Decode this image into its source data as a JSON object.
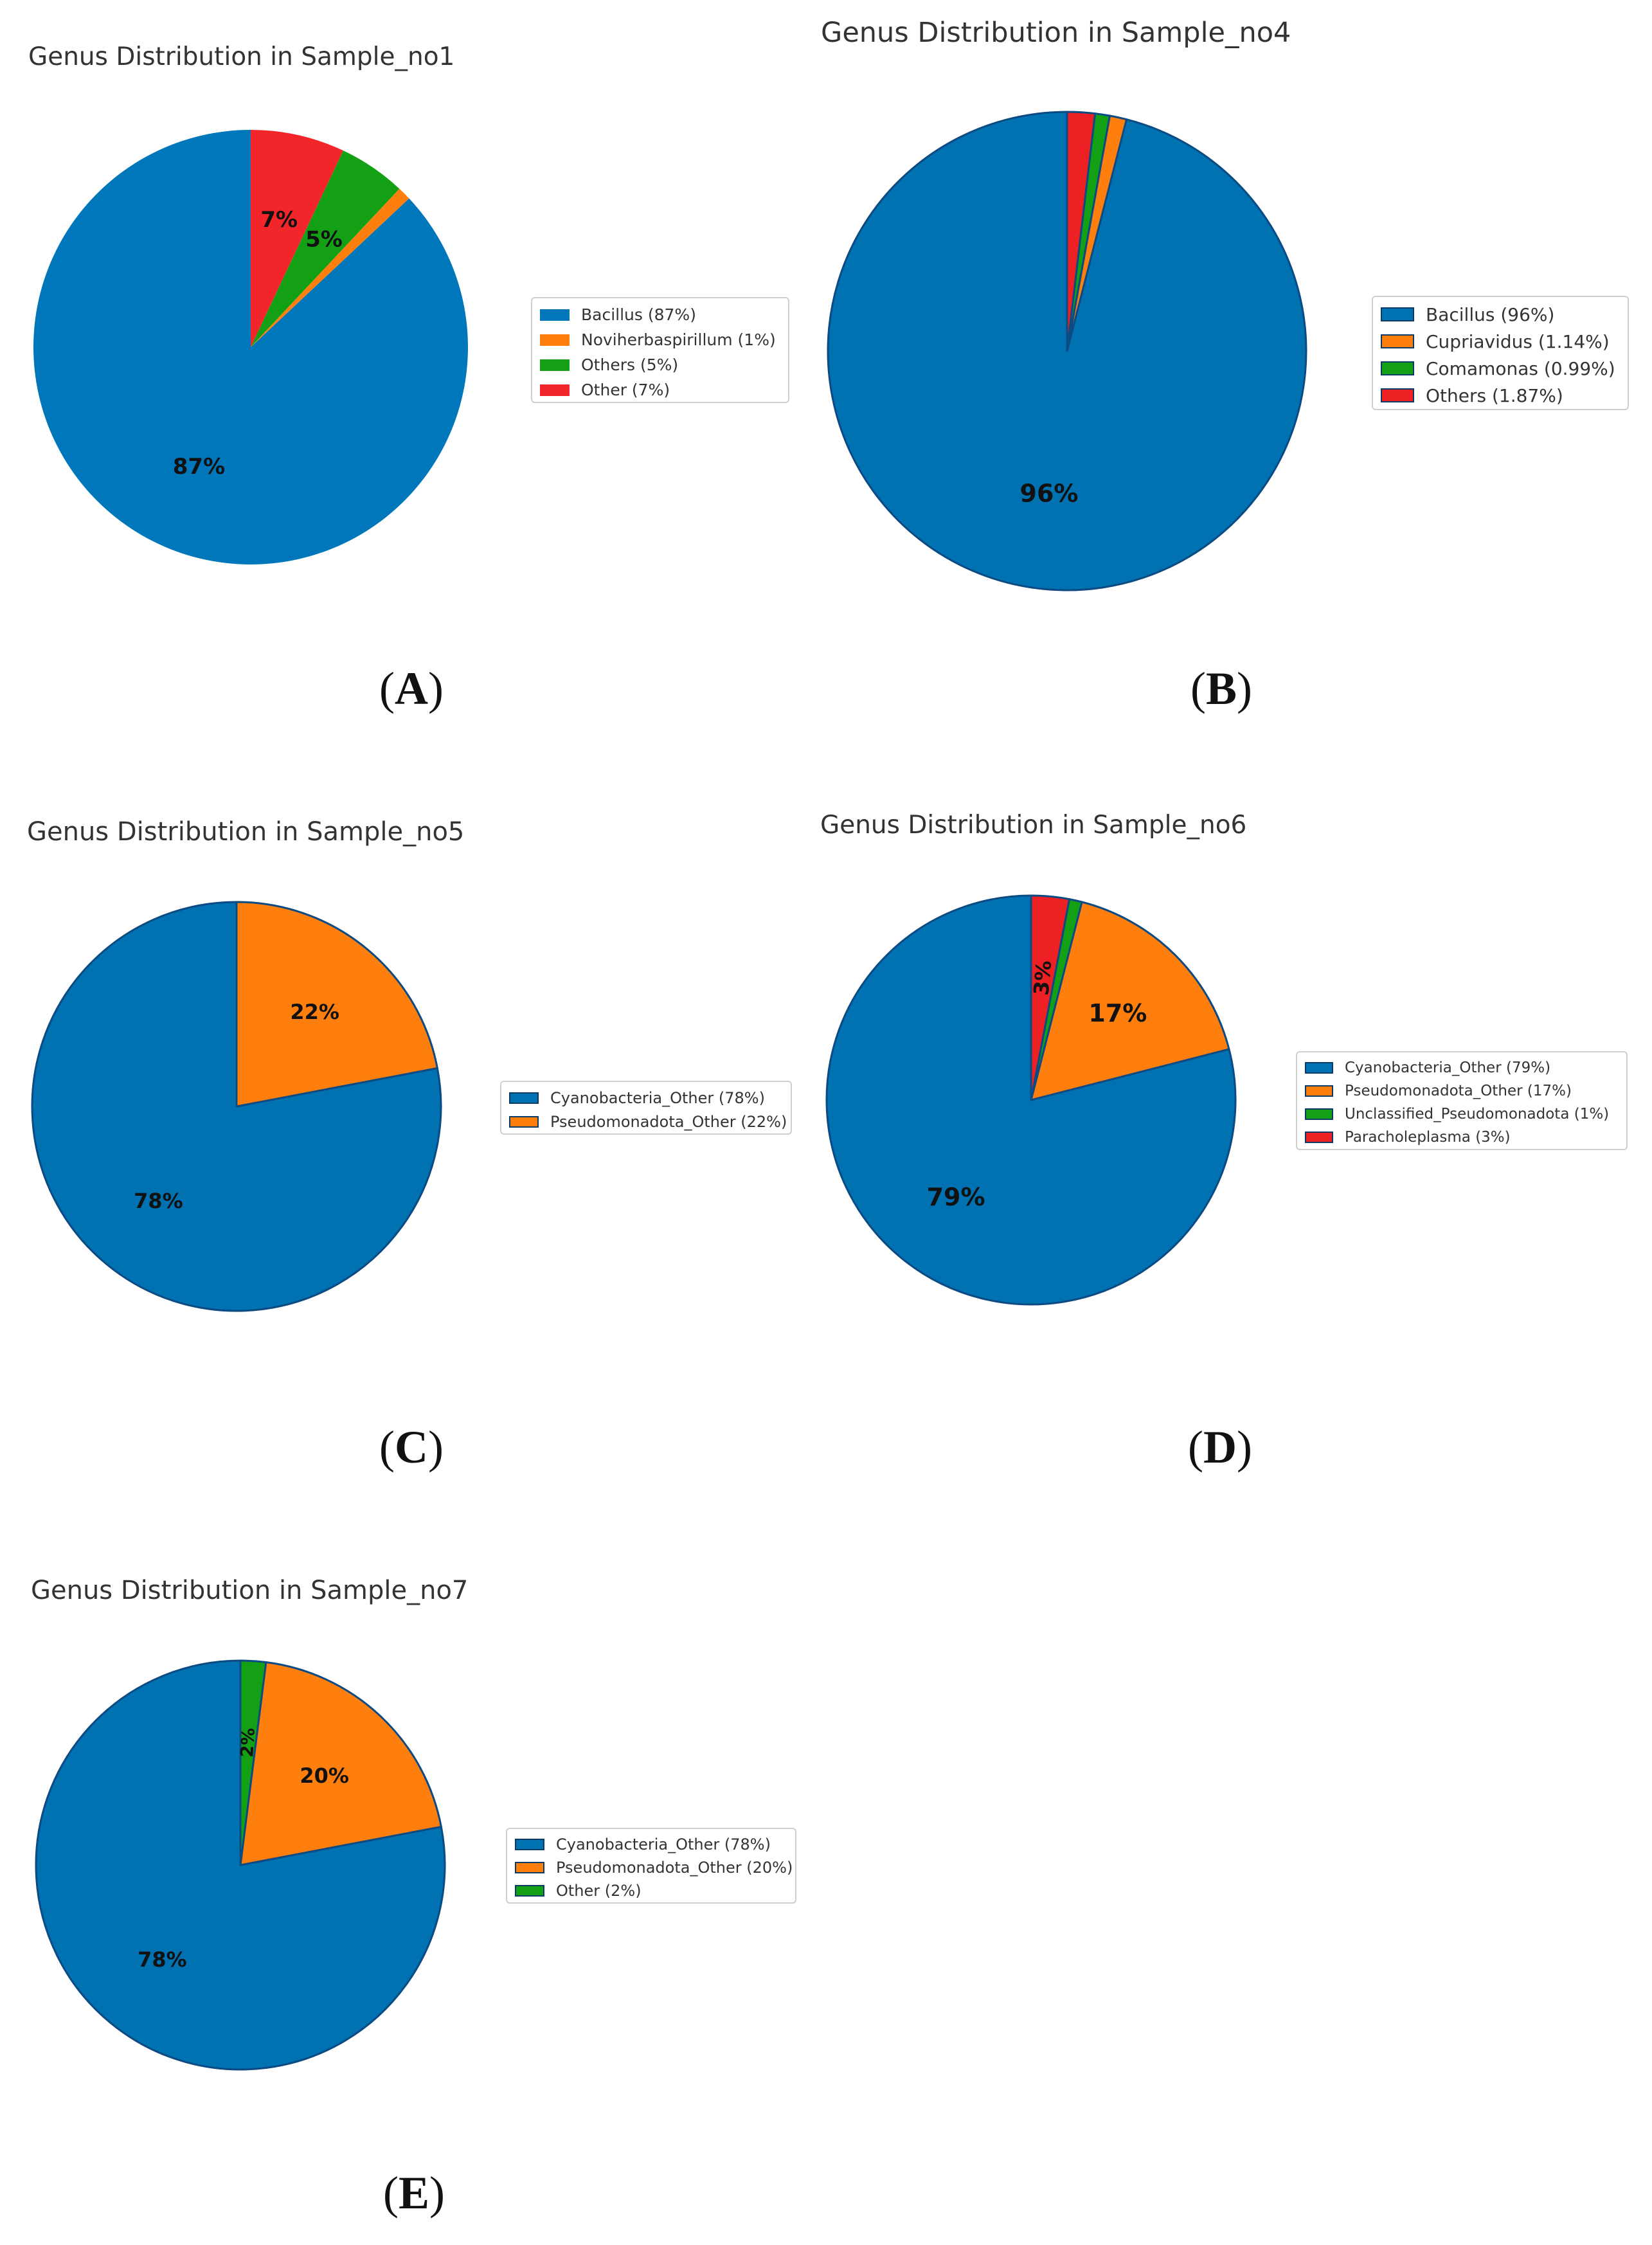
{
  "colors": {
    "blue": "#0072b2",
    "orange": "#ff7f0e",
    "green": "#109c10",
    "red": "#ed2024"
  },
  "chart_data": [
    {
      "type": "pie",
      "panel": "A",
      "title": "Genus Distribution in Sample_no1",
      "series": [
        {
          "name": "Bacillus",
          "legend": "Bacillus (87%)",
          "value": 87,
          "label": "87%",
          "color": "#0077bb"
        },
        {
          "name": "Noviherbaspirillum",
          "legend": "Noviherbaspirillum (1%)",
          "value": 1,
          "label": "",
          "color": "#ff7f0e"
        },
        {
          "name": "Others",
          "legend": "Others (5%)",
          "value": 5,
          "label": "5%",
          "color": "#14a014"
        },
        {
          "name": "Other",
          "legend": "Other (7%)",
          "value": 7,
          "label": "7%",
          "color": "#f2262a"
        }
      ]
    },
    {
      "type": "pie",
      "panel": "B",
      "title": "Genus Distribution in Sample_no4",
      "series": [
        {
          "name": "Bacillus",
          "legend": "Bacillus (96%)",
          "value": 96,
          "label": "96%",
          "color": "#0072b2"
        },
        {
          "name": "Cupriavidus",
          "legend": "Cupriavidus (1.14%)",
          "value": 1.14,
          "label": "",
          "color": "#ff7f0e"
        },
        {
          "name": "Comamonas",
          "legend": "Comamonas (0.99%)",
          "value": 0.99,
          "label": "",
          "color": "#14a014"
        },
        {
          "name": "Others",
          "legend": "Others (1.87%)",
          "value": 1.87,
          "label": "",
          "color": "#ed2024"
        }
      ]
    },
    {
      "type": "pie",
      "panel": "C",
      "title": "Genus Distribution in Sample_no5",
      "series": [
        {
          "name": "Cyanobacteria_Other",
          "legend": "Cyanobacteria_Other (78%)",
          "value": 78,
          "label": "78%",
          "color": "#0072b2"
        },
        {
          "name": "Pseudomonadota_Other",
          "legend": "Pseudomonadota_Other (22%)",
          "value": 22,
          "label": "22%",
          "color": "#ff7f0e"
        }
      ]
    },
    {
      "type": "pie",
      "panel": "D",
      "title": "Genus Distribution in Sample_no6",
      "series": [
        {
          "name": "Cyanobacteria_Other",
          "legend": "Cyanobacteria_Other (79%)",
          "value": 79,
          "label": "79%",
          "color": "#0072b2"
        },
        {
          "name": "Pseudomonadota_Other",
          "legend": "Pseudomonadota_Other (17%)",
          "value": 17,
          "label": "17%",
          "color": "#ff7f0e"
        },
        {
          "name": "Unclassified_Pseudomonadota",
          "legend": "Unclassified_Pseudomonadota (1%)",
          "value": 1,
          "label": "",
          "color": "#14a014"
        },
        {
          "name": "Paracholeplasma",
          "legend": "Paracholeplasma (3%)",
          "value": 3,
          "label": "3%",
          "color": "#ed2024"
        }
      ]
    },
    {
      "type": "pie",
      "panel": "E",
      "title": "Genus Distribution in Sample_no7",
      "series": [
        {
          "name": "Cyanobacteria_Other",
          "legend": "Cyanobacteria_Other (78%)",
          "value": 78,
          "label": "78%",
          "color": "#0072b2"
        },
        {
          "name": "Pseudomonadota_Other",
          "legend": "Pseudomonadota_Other (20%)",
          "value": 20,
          "label": "20%",
          "color": "#ff7f0e"
        },
        {
          "name": "Other",
          "legend": "Other (2%)",
          "value": 2,
          "label": "2%",
          "color": "#14a014"
        }
      ]
    }
  ]
}
